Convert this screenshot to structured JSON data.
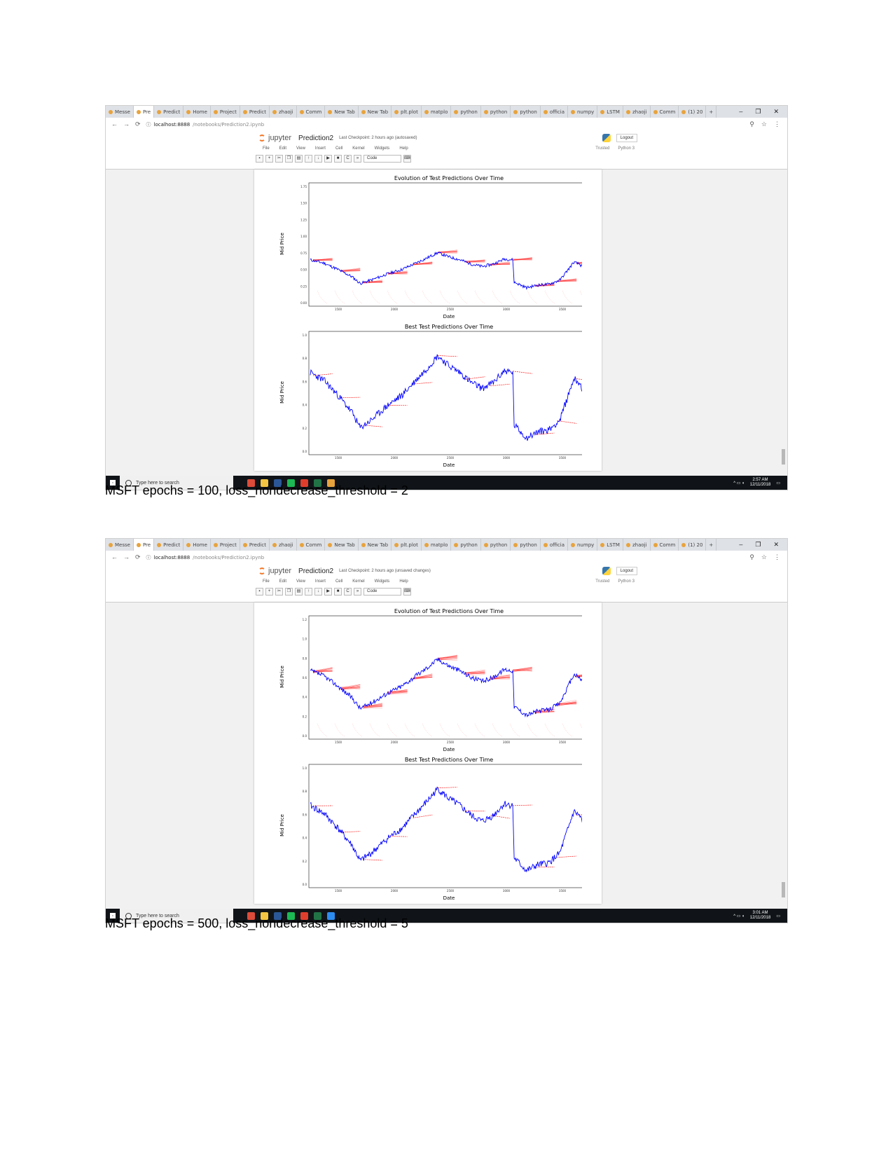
{
  "screenshots": [
    {
      "browser": {
        "tabs": [
          "Messe",
          "Pre",
          "Predict",
          "Home",
          "Project",
          "Predict",
          "zhaoji",
          "Comm",
          "New Tab",
          "New Tab",
          "plt.plot",
          "matplo",
          "python",
          "python",
          "python",
          "officia",
          "numpy",
          "LSTM",
          "zhaoji",
          "Comm",
          "(1) 20"
        ],
        "url_host": "localhost:8888",
        "url_path": "/notebooks/Prediction2.ipynb"
      },
      "jupyter": {
        "logo_text": "jupyter",
        "notebook_title": "Prediction2",
        "checkpoint": "Last Checkpoint: 2 hours ago (autosaved)",
        "logout_label": "Logout",
        "menu": [
          "File",
          "Edit",
          "View",
          "Insert",
          "Cell",
          "Kernel",
          "Widgets",
          "Help"
        ],
        "trusted_label": "Trusted",
        "kernel_label": "Python 3",
        "cell_type": "Code"
      },
      "taskbar": {
        "search_placeholder": "Type here to search",
        "time": "2:57 AM",
        "date": "12/11/2018"
      },
      "charts": {
        "evolution": {
          "title": "Evolution of Test Predictions Over Time",
          "xlabel": "Date",
          "ylabel": "Mid Price",
          "ytick_labels": [
            "1.75",
            "1.50",
            "1.25",
            "1.00",
            "0.75",
            "0.50",
            "0.25",
            "0.00"
          ],
          "xtick_labels": [
            "1500",
            "2000",
            "2500",
            "3000",
            "3500"
          ]
        },
        "best": {
          "title": "Best Test Predictions Over Time",
          "xlabel": "Date",
          "ylabel": "Mid Price",
          "ytick_labels": [
            "1.0",
            "0.8",
            "0.6",
            "0.4",
            "0.2",
            "0.0"
          ],
          "xtick_labels": [
            "1500",
            "2000",
            "2500",
            "3000",
            "3500"
          ]
        }
      }
    },
    {
      "browser": {
        "tabs": [
          "Messe",
          "Pre",
          "Predict",
          "Home",
          "Project",
          "Predict",
          "zhaoji",
          "Comm",
          "New Tab",
          "New Tab",
          "plt.plot",
          "matplo",
          "python",
          "python",
          "python",
          "officia",
          "numpy",
          "LSTM",
          "zhaoji",
          "Comm",
          "(1) 20"
        ],
        "url_host": "localhost:8888",
        "url_path": "/notebooks/Prediction2.ipynb"
      },
      "jupyter": {
        "logo_text": "jupyter",
        "notebook_title": "Prediction2",
        "checkpoint": "Last Checkpoint: 2 hours ago (unsaved changes)",
        "logout_label": "Logout",
        "menu": [
          "File",
          "Edit",
          "View",
          "Insert",
          "Cell",
          "Kernel",
          "Widgets",
          "Help"
        ],
        "trusted_label": "Trusted",
        "kernel_label": "Python 3",
        "cell_type": "Code"
      },
      "taskbar": {
        "search_placeholder": "Type here to search",
        "time": "3:01 AM",
        "date": "12/11/2018"
      },
      "charts": {
        "evolution": {
          "title": "Evolution of Test Predictions Over Time",
          "xlabel": "Date",
          "ylabel": "Mid Price",
          "ytick_labels": [
            "1.2",
            "1.0",
            "0.8",
            "0.6",
            "0.4",
            "0.2",
            "0.0"
          ],
          "xtick_labels": [
            "1500",
            "2000",
            "2500",
            "3000",
            "3500"
          ]
        },
        "best": {
          "title": "Best Test Predictions Over Time",
          "xlabel": "Date",
          "ylabel": "Mid Price",
          "ytick_labels": [
            "1.0",
            "0.8",
            "0.6",
            "0.4",
            "0.2",
            "0.0"
          ],
          "xtick_labels": [
            "1500",
            "2000",
            "2500",
            "3000",
            "3500"
          ]
        }
      }
    }
  ],
  "captions": [
    "MSFT epochs = 100, loss_nondecrease_threshold = 2",
    "MSFT epochs = 500, loss_nondecrease_threshold = 5"
  ],
  "colors": {
    "actual": "#0000ff",
    "prediction": "#ff0000"
  }
}
